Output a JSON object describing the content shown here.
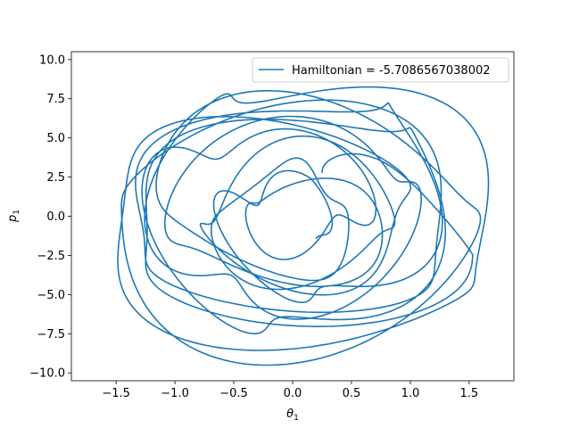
{
  "chart_data": {
    "type": "line",
    "title": "",
    "xlabel": "θ",
    "xlabel_sub": "1",
    "ylabel": "p",
    "ylabel_sub": "1",
    "xlim": [
      -1.88,
      1.88
    ],
    "ylim": [
      -10.5,
      10.5
    ],
    "xticks": [
      -1.5,
      -1.0,
      -0.5,
      0.0,
      0.5,
      1.0,
      1.5
    ],
    "xtick_labels": [
      "−1.5",
      "−1.0",
      "−0.5",
      "0.0",
      "0.5",
      "1.0",
      "1.5"
    ],
    "yticks": [
      -10.0,
      -7.5,
      -5.0,
      -2.5,
      0.0,
      2.5,
      5.0,
      7.5,
      10.0
    ],
    "ytick_labels": [
      "−10.0",
      "−7.5",
      "−5.0",
      "−2.5",
      "0.0",
      "2.5",
      "5.0",
      "7.5",
      "10.0"
    ],
    "grid": false,
    "legend_position": "top-right",
    "series": [
      {
        "name": "Hamiltonian = -5.7086567038002",
        "color": "#1f77b4",
        "trajectory": {
          "theta_amplitude": 1.75,
          "p_amplitude": 9.6,
          "start": [
            0.25,
            2.8
          ],
          "end": [
            0.2,
            -1.4
          ]
        }
      }
    ]
  }
}
